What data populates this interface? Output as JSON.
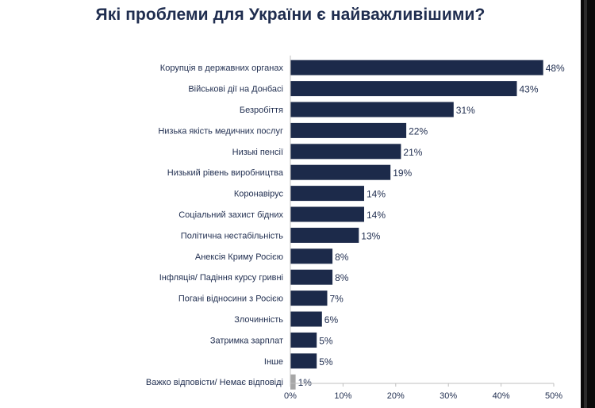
{
  "chart_data": {
    "type": "bar",
    "orientation": "horizontal",
    "title": "Які проблеми для України є найважливішими?",
    "categories": [
      "Корупція в державних органах",
      "Військові дії на Донбасі",
      "Безробіття",
      "Низька якість медичних послуг",
      "Низькі пенсії",
      "Низький рівень виробництва",
      "Коронавірус",
      "Соціальний захист бідних",
      "Політична нестабільність",
      "Анексія Криму Росією",
      "Інфляція/ Падіння курсу гривні",
      "Погані відносини з Росією",
      "Злочинність",
      "Затримка зарплат",
      "Інше",
      "Важко відповісти/ Немає відповіді"
    ],
    "values": [
      48,
      43,
      31,
      22,
      21,
      19,
      14,
      14,
      13,
      8,
      8,
      7,
      6,
      5,
      5,
      1
    ],
    "value_labels": [
      "48%",
      "43%",
      "31%",
      "22%",
      "21%",
      "19%",
      "14%",
      "14%",
      "13%",
      "8%",
      "8%",
      "7%",
      "6%",
      "5%",
      "5%",
      "1%"
    ],
    "xlim": [
      0,
      50
    ],
    "x_ticks": [
      "0%",
      "10%",
      "20%",
      "30%",
      "40%",
      "50%"
    ],
    "grid": false,
    "colors": {
      "bar": "#1c2a4a",
      "bar_last": "#a6a6a6",
      "text": "#1f2d4f",
      "axis": "#bfbfbf"
    }
  }
}
